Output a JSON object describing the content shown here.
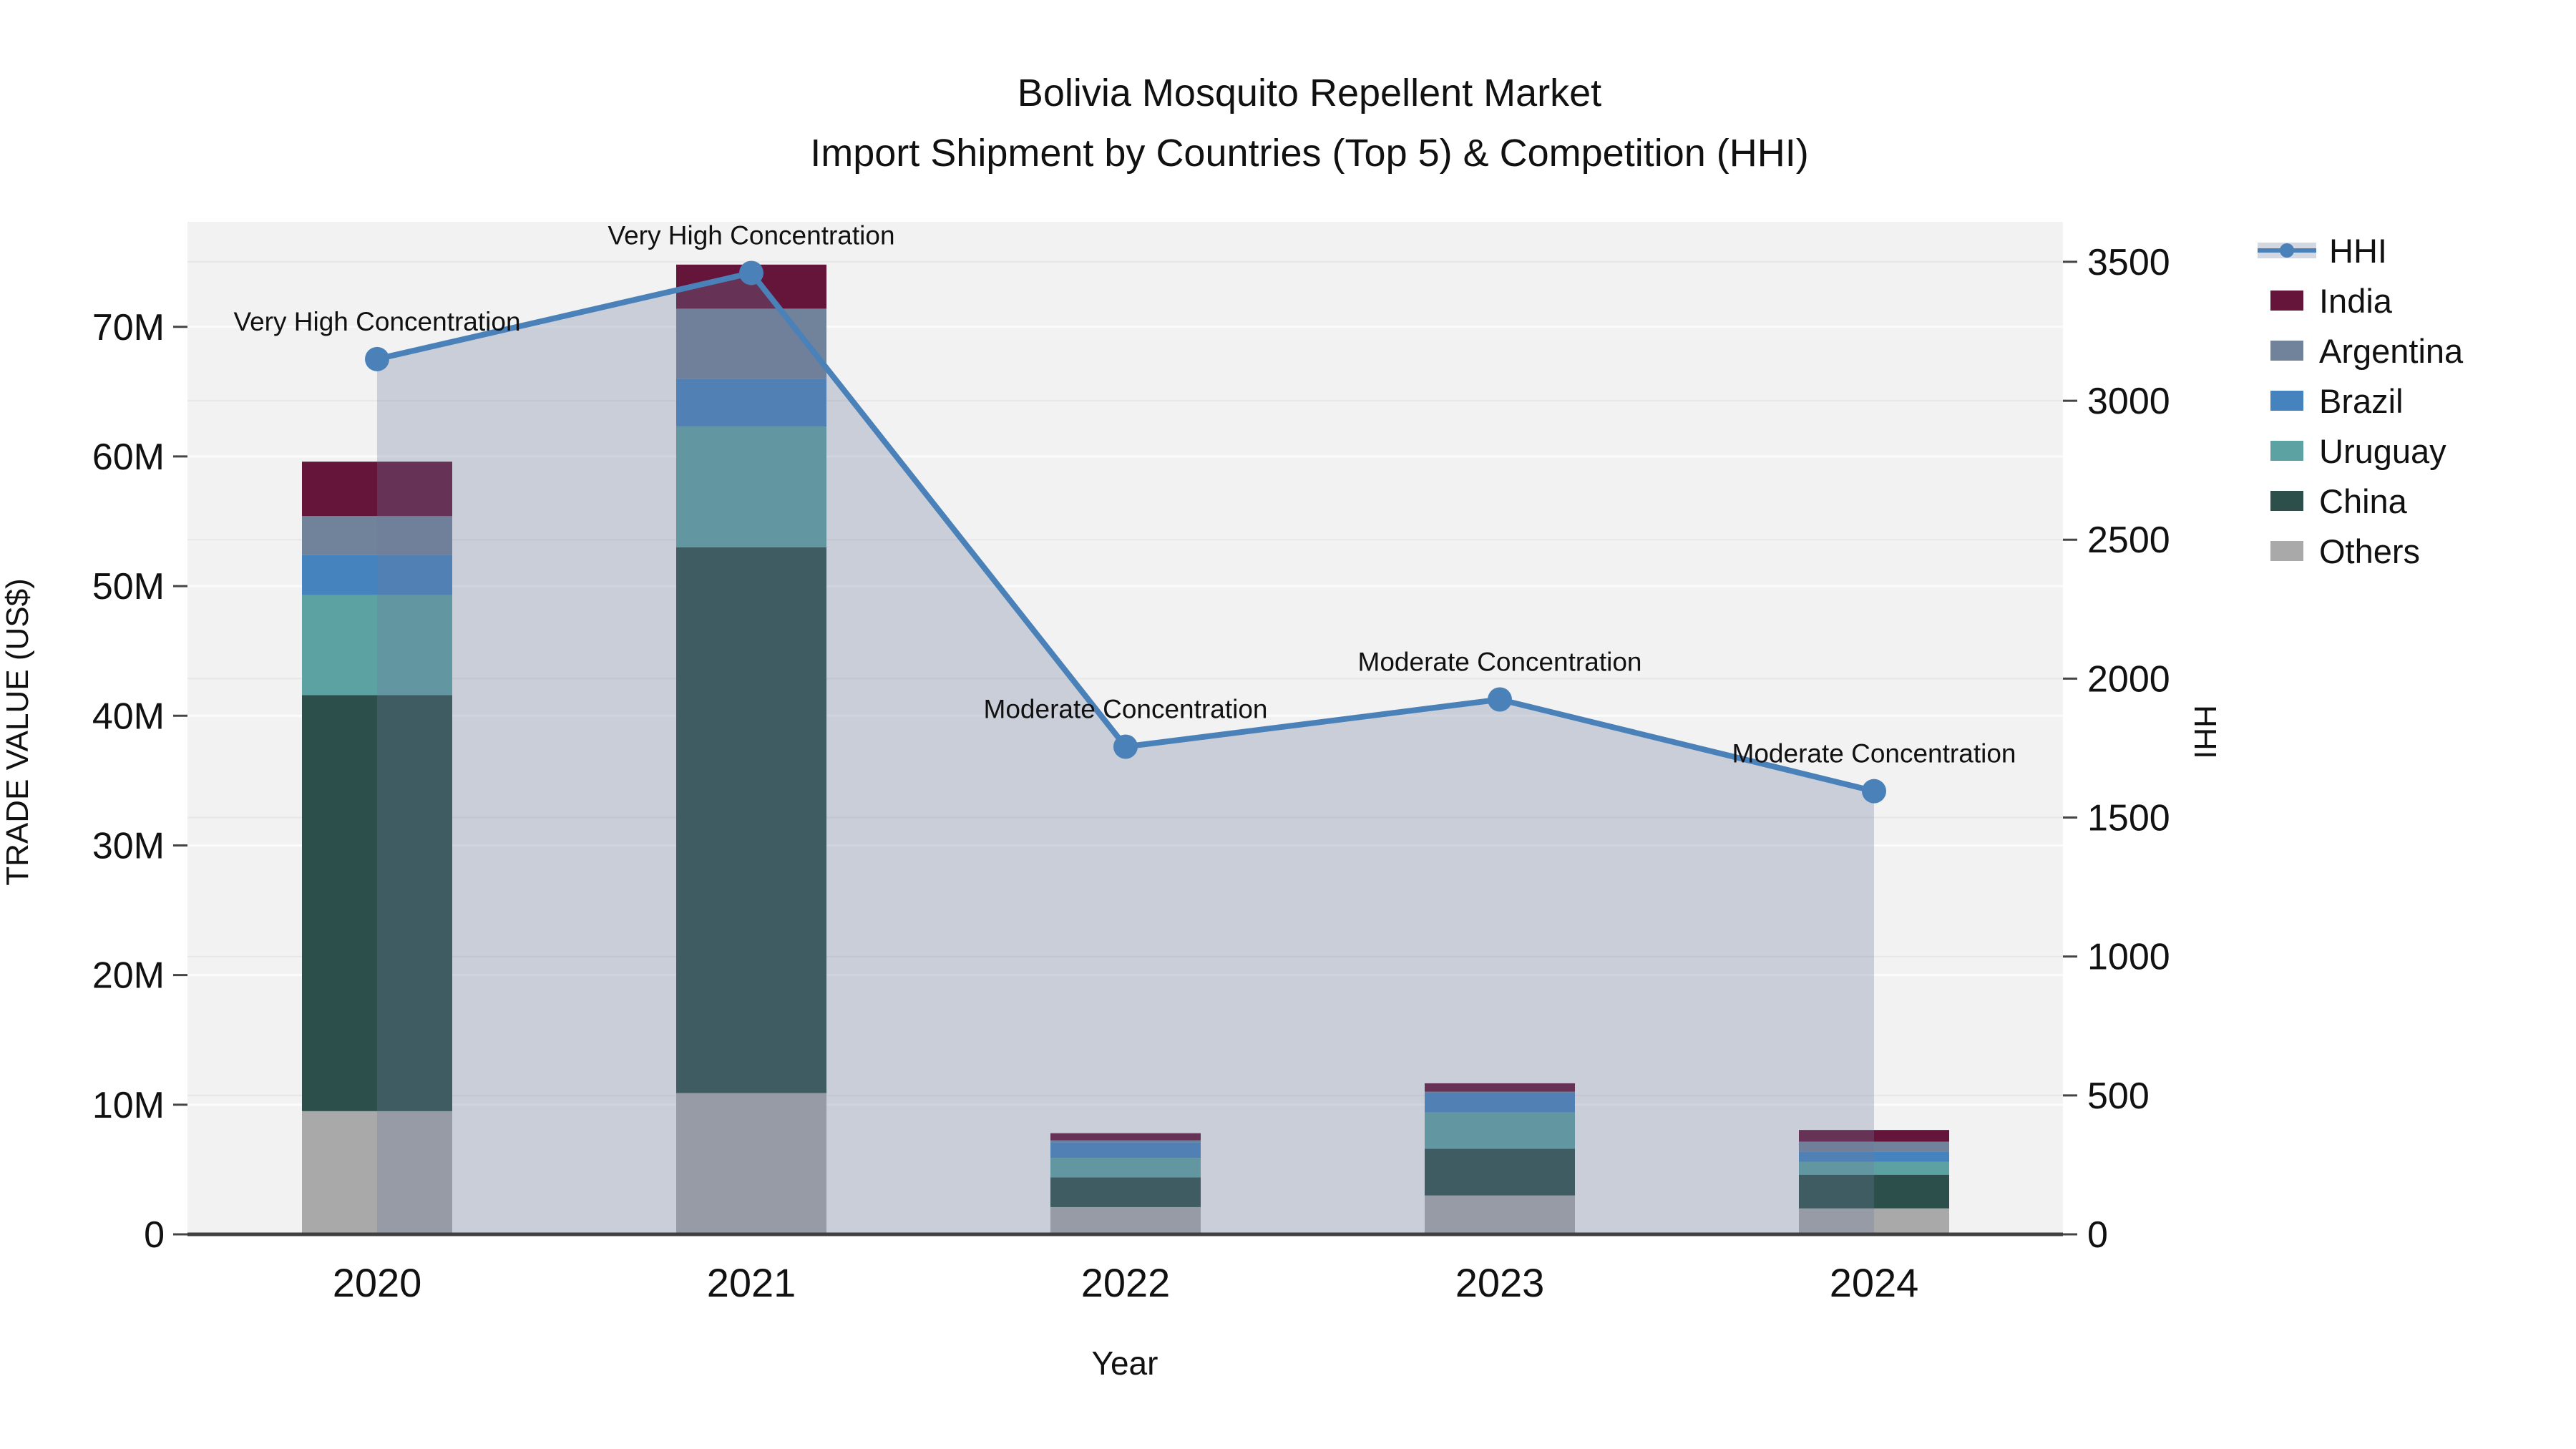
{
  "title": {
    "line1": "Bolivia Mosquito Repellent Market",
    "line2": "Import Shipment by Countries (Top 5) & Competition (HHI)"
  },
  "axes": {
    "left": {
      "title": "TRADE VALUE (US$)",
      "tick_labels": [
        "0",
        "10M",
        "20M",
        "30M",
        "40M",
        "50M",
        "60M",
        "70M"
      ],
      "tick_values": [
        0,
        10,
        20,
        30,
        40,
        50,
        60,
        70
      ],
      "max": 78.1
    },
    "right": {
      "title": "HHI",
      "tick_labels": [
        "0",
        "500",
        "1000",
        "1500",
        "2000",
        "2500",
        "3000",
        "3500"
      ],
      "tick_values": [
        0,
        500,
        1000,
        1500,
        2000,
        2500,
        3000,
        3500
      ],
      "max": 3644
    },
    "x": {
      "title": "Year",
      "categories": [
        "2020",
        "2021",
        "2022",
        "2023",
        "2024"
      ]
    }
  },
  "chart_data": {
    "type": "combo: stacked-bar + line",
    "categories": [
      "2020",
      "2021",
      "2022",
      "2023",
      "2024"
    ],
    "bar_unit": "million US$",
    "stack_order_bottom_to_top": [
      "Others",
      "China",
      "Uruguay",
      "Brazil",
      "Argentina",
      "India"
    ],
    "series": [
      {
        "name": "Others",
        "type": "bar",
        "color": "#a9a9a9",
        "values": [
          9.5,
          10.9,
          2.1,
          3.0,
          2.0
        ]
      },
      {
        "name": "China",
        "type": "bar",
        "color": "#2d4f4b",
        "values": [
          32.1,
          42.1,
          2.3,
          3.6,
          2.6
        ]
      },
      {
        "name": "Uruguay",
        "type": "bar",
        "color": "#5da2a3",
        "values": [
          7.7,
          9.3,
          1.5,
          2.8,
          1.0
        ]
      },
      {
        "name": "Brazil",
        "type": "bar",
        "color": "#4583bf",
        "values": [
          3.1,
          3.7,
          1.2,
          1.5,
          0.75
        ]
      },
      {
        "name": "Argentina",
        "type": "bar",
        "color": "#71839a",
        "values": [
          3.0,
          5.4,
          0.15,
          0.1,
          0.8
        ]
      },
      {
        "name": "India",
        "type": "bar",
        "color": "#641539",
        "values": [
          4.2,
          3.4,
          0.55,
          0.65,
          0.9
        ]
      }
    ],
    "line": {
      "name": "HHI",
      "axis": "right",
      "color": "#4a81b8",
      "fill": "rgba(108,124,155,0.30)",
      "values": [
        3150,
        3460,
        1755,
        1925,
        1595
      ]
    },
    "annotations": [
      "Very High Concentration",
      "Very High Concentration",
      "Moderate Concentration",
      "Moderate Concentration",
      "Moderate Concentration"
    ],
    "legend_order": [
      "HHI",
      "India",
      "Argentina",
      "Brazil",
      "Uruguay",
      "China",
      "Others"
    ],
    "totals_musd": [
      59.6,
      74.8,
      7.8,
      11.65,
      8.05
    ]
  },
  "style": {
    "plot_bg": "#f2f2f2",
    "grid_left_axis": "#fbfbfb",
    "grid_right_axis": "#e7e7e7",
    "axis_line": "#3f3f3f",
    "tick_color": "#444444",
    "text_color": "#111111"
  }
}
